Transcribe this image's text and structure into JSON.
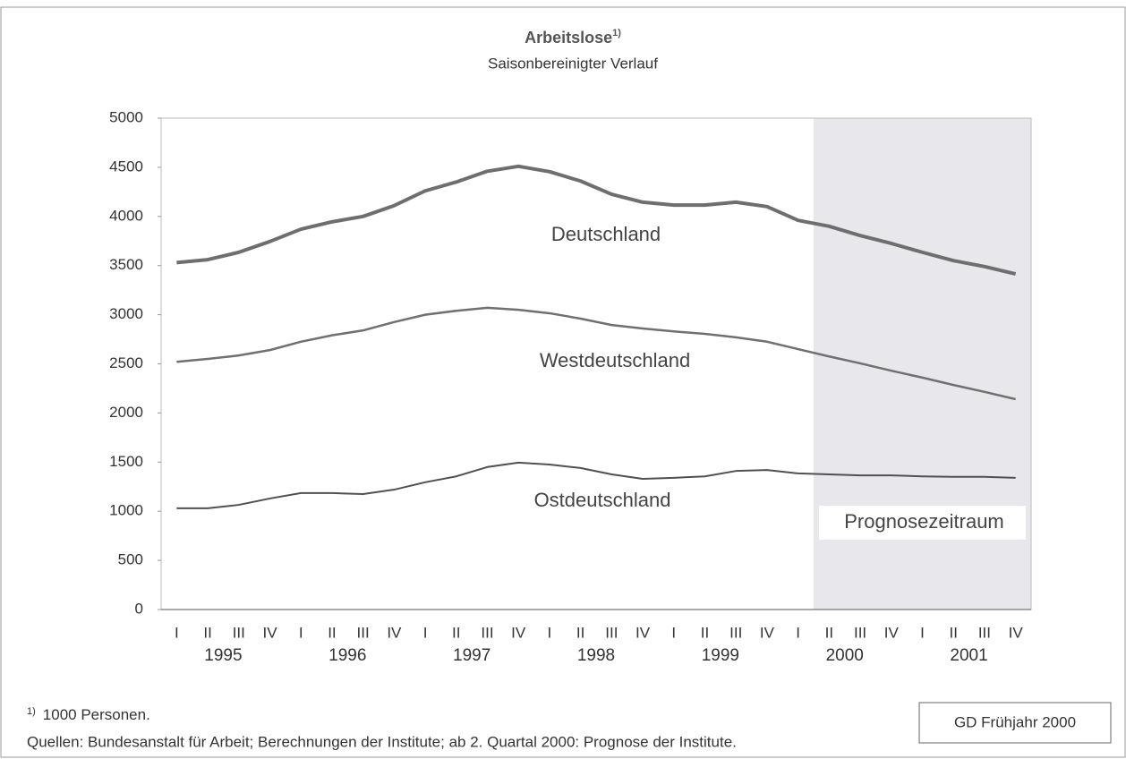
{
  "chart_data": {
    "type": "line",
    "title": "Arbeitslose",
    "title_note": "1)",
    "subtitle": "Saisonbereinigter Verlauf",
    "categories": [
      "I",
      "II",
      "III",
      "IV",
      "I",
      "II",
      "III",
      "IV",
      "I",
      "II",
      "III",
      "IV",
      "I",
      "II",
      "III",
      "IV",
      "I",
      "II",
      "III",
      "IV",
      "I",
      "II",
      "III",
      "IV",
      "I",
      "II",
      "III",
      "IV"
    ],
    "year_labels": [
      "1995",
      "1996",
      "1997",
      "1998",
      "1999",
      "2000",
      "2001"
    ],
    "series": [
      {
        "name": "Deutschland",
        "color": "#6e6e6e",
        "values": [
          3530,
          3560,
          3635,
          3745,
          3870,
          3945,
          4000,
          4110,
          4260,
          4350,
          4460,
          4510,
          4455,
          4360,
          4225,
          4145,
          4115,
          4115,
          4145,
          4100,
          3960,
          3900,
          3805,
          3725,
          3635,
          3550,
          3490,
          3415
        ]
      },
      {
        "name": "Westdeutschland",
        "color": "#707070",
        "values": [
          2520,
          2550,
          2585,
          2640,
          2725,
          2790,
          2840,
          2925,
          3000,
          3040,
          3070,
          3050,
          3015,
          2960,
          2895,
          2860,
          2830,
          2805,
          2770,
          2725,
          2650,
          2575,
          2505,
          2430,
          2360,
          2285,
          2215,
          2140
        ]
      },
      {
        "name": "Ostdeutschland",
        "color": "#505050",
        "values": [
          1030,
          1030,
          1065,
          1130,
          1185,
          1185,
          1175,
          1220,
          1295,
          1355,
          1450,
          1495,
          1475,
          1440,
          1375,
          1330,
          1340,
          1355,
          1410,
          1420,
          1385,
          1375,
          1365,
          1365,
          1355,
          1350,
          1350,
          1340
        ]
      }
    ],
    "ylim": [
      0,
      5000
    ],
    "yticks": [
      0,
      500,
      1000,
      1500,
      2000,
      2500,
      3000,
      3500,
      4000,
      4500,
      5000
    ],
    "shaded_region": {
      "start": 21,
      "label": "Prognosezeitraum"
    }
  },
  "footnote": {
    "marker": "1)",
    "text": "1000 Personen."
  },
  "source": "Quellen: Bundesanstalt für Arbeit; Berechnungen der Institute; ab 2. Quartal 2000: Prognose der Institute.",
  "badge": "GD Frühjahr 2000"
}
